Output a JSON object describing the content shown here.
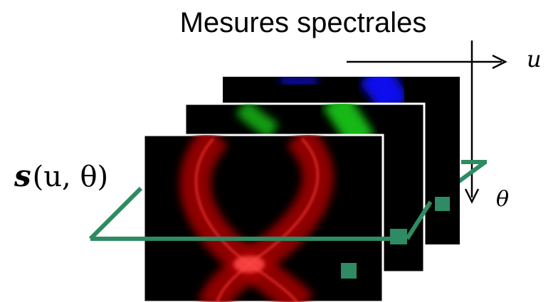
{
  "title": "Mesures spectrales",
  "signal_label": {
    "prefix": "s",
    "args": "(u, θ)"
  },
  "axes": {
    "u_label": "u",
    "theta_label": "θ"
  },
  "channels": [
    {
      "name": "blue",
      "color": "#1010ee"
    },
    {
      "name": "green",
      "color": "#18b818"
    },
    {
      "name": "red",
      "color": "#ee1010"
    }
  ],
  "colors": {
    "plane": "#2e8b63",
    "frame_border": "#ffffff",
    "frame_fill": "#000000",
    "axis": "#000000"
  }
}
